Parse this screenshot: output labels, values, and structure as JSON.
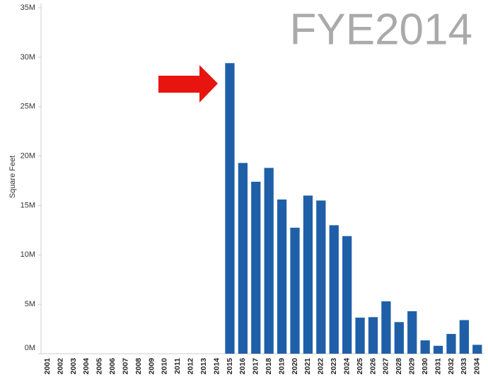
{
  "chart_data": {
    "type": "bar",
    "title": "FYE2014",
    "y_label": "Square Feet",
    "categories": [
      "2001",
      "2002",
      "2003",
      "2004",
      "2005",
      "2006",
      "2007",
      "2008",
      "2009",
      "2010",
      "2011",
      "2012",
      "2013",
      "2014",
      "2015",
      "2016",
      "2017",
      "2018",
      "2019",
      "2020",
      "2021",
      "2022",
      "2023",
      "2024",
      "2025",
      "2026",
      "2027",
      "2028",
      "2029",
      "2030",
      "2031",
      "2032",
      "2033",
      "2034"
    ],
    "values": [
      0,
      0,
      0,
      0,
      0,
      0,
      0,
      0,
      0,
      0,
      0,
      0,
      0,
      0,
      29400000,
      19300000,
      17400000,
      18800000,
      15600000,
      12750000,
      16000000,
      15500000,
      13000000,
      11900000,
      3650000,
      3700000,
      5300000,
      3200000,
      4300000,
      1350000,
      800000,
      2000000,
      3400000,
      900000
    ],
    "color": "#1f5fa8",
    "ylim": [
      0,
      35000000
    ],
    "yticks": [
      {
        "value": 0,
        "label": "0M"
      },
      {
        "value": 5000000,
        "label": "5M"
      },
      {
        "value": 10000000,
        "label": "10M"
      },
      {
        "value": 15000000,
        "label": "15M"
      },
      {
        "value": 20000000,
        "label": "20M"
      },
      {
        "value": 25000000,
        "label": "25M"
      },
      {
        "value": 30000000,
        "label": "30M"
      },
      {
        "value": 35000000,
        "label": "35M"
      }
    ],
    "grid": false
  }
}
